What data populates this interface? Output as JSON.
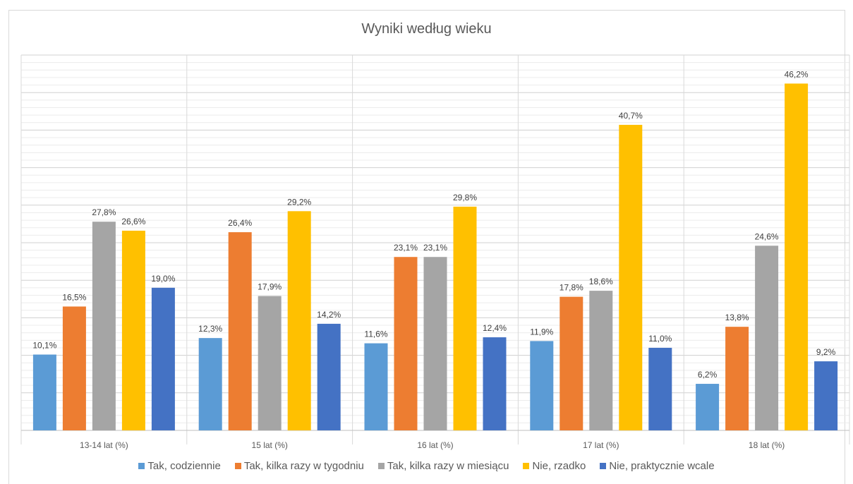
{
  "chart_data": {
    "type": "bar",
    "title": "Wyniki według wieku",
    "categories": [
      "13-14 lat (%)",
      "15 lat (%)",
      "16 lat (%)",
      "17 lat (%)",
      "18 lat (%)"
    ],
    "series": [
      {
        "name": "Tak, codziennie",
        "color": "#5b9bd5",
        "values": [
          10.1,
          12.3,
          11.6,
          11.9,
          6.2
        ],
        "labels": [
          "10,1%",
          "12,3%",
          "11,6%",
          "11,9%",
          "6,2%"
        ]
      },
      {
        "name": "Tak, kilka razy w tygodniu",
        "color": "#ed7d31",
        "values": [
          16.5,
          26.4,
          23.1,
          17.8,
          13.8
        ],
        "labels": [
          "16,5%",
          "26,4%",
          "23,1%",
          "17,8%",
          "13,8%"
        ]
      },
      {
        "name": "Tak, kilka razy w miesiącu",
        "color": "#a5a5a5",
        "values": [
          27.8,
          17.9,
          23.1,
          18.6,
          24.6
        ],
        "labels": [
          "27,8%",
          "17,9%",
          "23,1%",
          "18,6%",
          "24,6%"
        ]
      },
      {
        "name": "Nie, rzadko",
        "color": "#ffc000",
        "values": [
          26.6,
          29.2,
          29.8,
          40.7,
          46.2
        ],
        "labels": [
          "26,6%",
          "29,2%",
          "29,8%",
          "40,7%",
          "46,2%"
        ]
      },
      {
        "name": "Nie, praktycznie wcale",
        "color": "#4472c4",
        "values": [
          19.0,
          14.2,
          12.4,
          11.0,
          9.2
        ],
        "labels": [
          "19,0%",
          "14,2%",
          "12,4%",
          "11,0%",
          "9,2%"
        ]
      }
    ],
    "ylim": [
      0,
      50
    ],
    "grid": true,
    "legend": "bottom"
  }
}
